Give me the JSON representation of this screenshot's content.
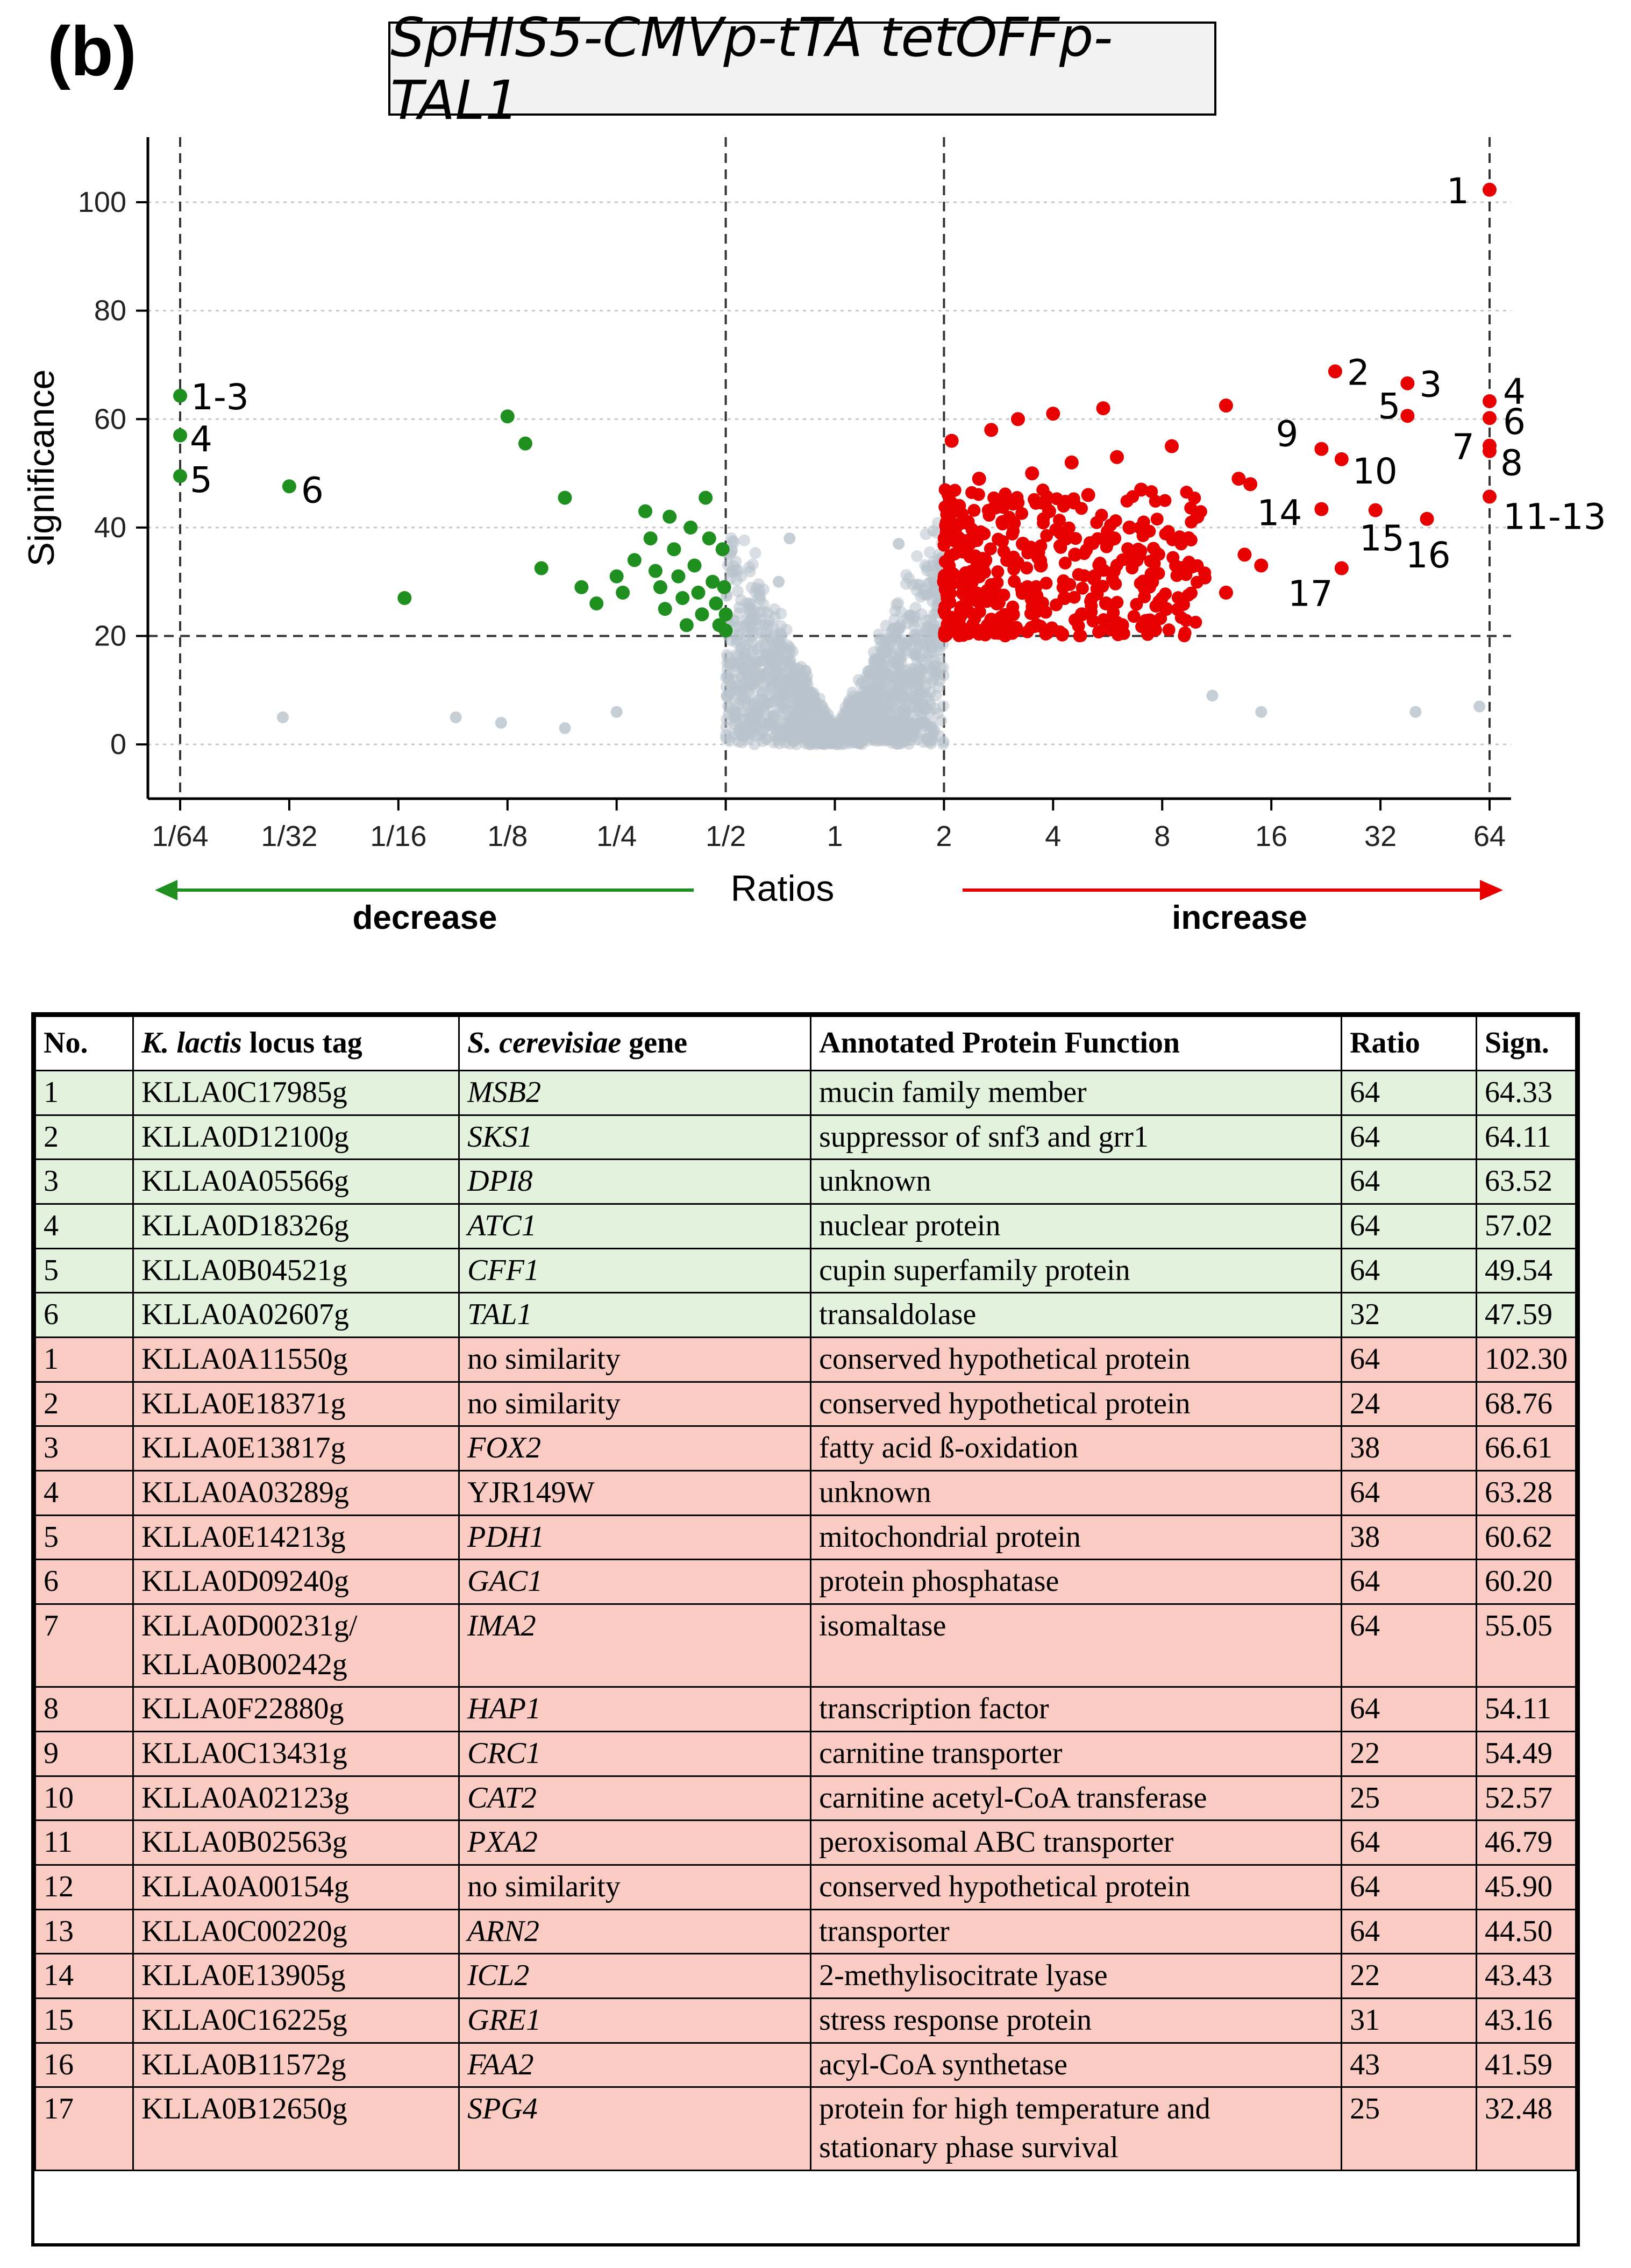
{
  "panel_label": "(b)",
  "title": "SpHIS5-CMVp-tTA tetOFFp-TAL1",
  "chart_data": {
    "type": "scatter",
    "title": "SpHIS5-CMVp-tTA tetOFFp-TAL1",
    "xlabel": "Ratios",
    "ylabel": "Significance",
    "x_scale": "log2",
    "xlim": [
      0.0156,
      64
    ],
    "ylim": [
      -10,
      112
    ],
    "x_ticks": [
      "1/64",
      "1/32",
      "1/16",
      "1/8",
      "1/4",
      "1/2",
      "1",
      "2",
      "4",
      "8",
      "16",
      "32",
      "64"
    ],
    "y_ticks": [
      "0",
      "20",
      "40",
      "60",
      "80",
      "100"
    ],
    "thresholds": {
      "ratio_low": 0.5,
      "ratio_high": 2,
      "ratio_limits": [
        0.015625,
        64
      ],
      "significance": 20
    },
    "decrease_label": "decrease",
    "increase_label": "increase",
    "decreased_annotated": [
      {
        "label": "1-3",
        "x": 0.015625,
        "y": 64.3
      },
      {
        "label": "4",
        "x": 0.015625,
        "y": 57.0
      },
      {
        "label": "5",
        "x": 0.015625,
        "y": 49.5
      },
      {
        "label": "6",
        "x": 0.03125,
        "y": 47.6
      }
    ],
    "increased_annotated": [
      {
        "label": "1",
        "x": 64,
        "y": 102.3
      },
      {
        "label": "2",
        "x": 24,
        "y": 68.8
      },
      {
        "label": "3",
        "x": 38,
        "y": 66.6
      },
      {
        "label": "4",
        "x": 64,
        "y": 63.3
      },
      {
        "label": "5",
        "x": 38,
        "y": 60.6
      },
      {
        "label": "6",
        "x": 64,
        "y": 60.2
      },
      {
        "label": "7",
        "x": 64,
        "y": 55.1
      },
      {
        "label": "8",
        "x": 64,
        "y": 54.1
      },
      {
        "label": "9",
        "x": 22,
        "y": 54.5
      },
      {
        "label": "10",
        "x": 25,
        "y": 52.6
      },
      {
        "label": "11-13",
        "x": 64,
        "y": 45.7
      },
      {
        "label": "14",
        "x": 22,
        "y": 43.4
      },
      {
        "label": "15",
        "x": 31,
        "y": 43.2
      },
      {
        "label": "16",
        "x": 43,
        "y": 41.6
      },
      {
        "label": "17",
        "x": 25,
        "y": 32.5
      }
    ],
    "decreased_other": [
      [
        0.125,
        60.5
      ],
      [
        0.14,
        55.5
      ],
      [
        0.18,
        45.5
      ],
      [
        0.155,
        32.5
      ],
      [
        0.065,
        27
      ],
      [
        0.2,
        29
      ],
      [
        0.22,
        26
      ],
      [
        0.25,
        31
      ],
      [
        0.26,
        28
      ],
      [
        0.28,
        34
      ],
      [
        0.3,
        43
      ],
      [
        0.31,
        38
      ],
      [
        0.32,
        32
      ],
      [
        0.33,
        29
      ],
      [
        0.34,
        25
      ],
      [
        0.35,
        42
      ],
      [
        0.36,
        36
      ],
      [
        0.37,
        31
      ],
      [
        0.38,
        27
      ],
      [
        0.39,
        22
      ],
      [
        0.4,
        40
      ],
      [
        0.41,
        33
      ],
      [
        0.42,
        28
      ],
      [
        0.43,
        24
      ],
      [
        0.44,
        45.5
      ],
      [
        0.45,
        38
      ],
      [
        0.46,
        30
      ],
      [
        0.47,
        26
      ],
      [
        0.48,
        22
      ],
      [
        0.49,
        36
      ],
      [
        0.495,
        29
      ],
      [
        0.5,
        24
      ],
      [
        0.5,
        21
      ]
    ],
    "increased_other": [
      [
        12,
        62.5
      ],
      [
        5.5,
        62
      ],
      [
        3.2,
        60
      ],
      [
        4.0,
        61
      ],
      [
        2.7,
        58
      ],
      [
        2.1,
        56
      ],
      [
        8.5,
        55
      ],
      [
        6,
        53
      ],
      [
        4.5,
        52
      ],
      [
        3.5,
        50
      ],
      [
        2.5,
        49
      ],
      [
        13,
        49
      ],
      [
        14,
        48
      ],
      [
        7,
        47
      ],
      [
        5,
        46
      ],
      [
        3,
        45
      ],
      [
        2.2,
        44
      ],
      [
        10,
        42
      ],
      [
        9,
        38
      ],
      [
        6.5,
        40
      ],
      [
        4.2,
        39
      ],
      [
        3.3,
        37
      ],
      [
        2.3,
        36
      ],
      [
        2.6,
        34
      ],
      [
        3.7,
        33
      ],
      [
        5.2,
        31
      ],
      [
        7.5,
        30
      ],
      [
        8.2,
        25
      ],
      [
        12,
        28
      ],
      [
        15,
        33
      ],
      [
        13.5,
        35
      ],
      [
        2.0,
        30
      ],
      [
        2.4,
        28
      ],
      [
        2.8,
        26
      ],
      [
        3.1,
        24
      ],
      [
        3.6,
        22
      ],
      [
        4.3,
        27
      ],
      [
        4.8,
        24
      ],
      [
        5.6,
        26
      ],
      [
        6.2,
        22
      ],
      [
        2.1,
        22
      ],
      [
        2.9,
        41
      ],
      [
        3.9,
        43
      ],
      [
        4.6,
        35
      ],
      [
        6.8,
        34
      ],
      [
        2.2,
        38
      ],
      [
        2.5,
        31
      ],
      [
        2.7,
        23
      ],
      [
        3.4,
        29
      ],
      [
        5.9,
        38
      ]
    ],
    "other_points_note": ""
  },
  "table": {
    "headers": {
      "no": "No.",
      "tag_italic": "K. lactis",
      "tag_rest": " locus tag",
      "gene_italic": "S. cerevisiae",
      "gene_rest": " gene",
      "func": "Annotated Protein Function",
      "ratio": "Ratio",
      "sign": "Sign."
    },
    "decreased": [
      {
        "no": "1",
        "tag": "KLLA0C17985g",
        "gene": "MSB2",
        "func": "mucin family member",
        "ratio": "64",
        "sign": "64.33"
      },
      {
        "no": "2",
        "tag": "KLLA0D12100g",
        "gene": "SKS1",
        "func": "suppressor of snf3 and grr1",
        "ratio": "64",
        "sign": "64.11"
      },
      {
        "no": "3",
        "tag": "KLLA0A05566g",
        "gene": "DPI8",
        "func": "unknown",
        "ratio": "64",
        "sign": "63.52"
      },
      {
        "no": "4",
        "tag": "KLLA0D18326g",
        "gene": "ATC1",
        "func": "nuclear protein",
        "ratio": "64",
        "sign": "57.02"
      },
      {
        "no": "5",
        "tag": "KLLA0B04521g",
        "gene": "CFF1",
        "func": "cupin superfamily protein",
        "ratio": "64",
        "sign": "49.54"
      },
      {
        "no": "6",
        "tag": "KLLA0A02607g",
        "gene": "TAL1",
        "func": "transaldolase",
        "ratio": "32",
        "sign": "47.59"
      }
    ],
    "increased": [
      {
        "no": "1",
        "tag": "KLLA0A11550g",
        "gene": "no similarity",
        "plain": true,
        "func": "conserved hypothetical protein",
        "ratio": "64",
        "sign": "102.30"
      },
      {
        "no": "2",
        "tag": "KLLA0E18371g",
        "gene": "no similarity",
        "plain": true,
        "func": "conserved hypothetical protein",
        "ratio": "24",
        "sign": "68.76"
      },
      {
        "no": "3",
        "tag": "KLLA0E13817g",
        "gene": "FOX2",
        "func": "fatty acid ß-oxidation",
        "ratio": "38",
        "sign": "66.61"
      },
      {
        "no": "4",
        "tag": "KLLA0A03289g",
        "gene": "YJR149W",
        "plain": true,
        "func": "unknown",
        "ratio": "64",
        "sign": "63.28"
      },
      {
        "no": "5",
        "tag": "KLLA0E14213g",
        "gene": "PDH1",
        "func": "mitochondrial protein",
        "ratio": "38",
        "sign": "60.62"
      },
      {
        "no": "6",
        "tag": "KLLA0D09240g",
        "gene": "GAC1",
        "func": "protein phosphatase",
        "ratio": "64",
        "sign": "60.20"
      },
      {
        "no": "7",
        "tag": "KLLA0D00231g/ KLLA0B00242g",
        "gene": "IMA2",
        "func": "isomaltase",
        "ratio": "64",
        "sign": "55.05"
      },
      {
        "no": "8",
        "tag": "KLLA0F22880g",
        "gene": "HAP1",
        "func": "transcription factor",
        "ratio": "64",
        "sign": "54.11"
      },
      {
        "no": "9",
        "tag": "KLLA0C13431g",
        "gene": "CRC1",
        "func": "carnitine transporter",
        "ratio": "22",
        "sign": "54.49"
      },
      {
        "no": "10",
        "tag": "KLLA0A02123g",
        "gene": "CAT2",
        "func": "carnitine acetyl-CoA transferase",
        "ratio": "25",
        "sign": "52.57"
      },
      {
        "no": "11",
        "tag": "KLLA0B02563g",
        "gene": "PXA2",
        "func": "peroxisomal ABC transporter",
        "ratio": "64",
        "sign": "46.79"
      },
      {
        "no": "12",
        "tag": "KLLA0A00154g",
        "gene": "no similarity",
        "plain": true,
        "func": "conserved hypothetical protein",
        "ratio": "64",
        "sign": "45.90"
      },
      {
        "no": "13",
        "tag": "KLLA0C00220g",
        "gene": "ARN2",
        "func": "transporter",
        "ratio": "64",
        "sign": "44.50"
      },
      {
        "no": "14",
        "tag": "KLLA0E13905g",
        "gene": "ICL2",
        "func": "2-methylisocitrate lyase",
        "ratio": "22",
        "sign": "43.43"
      },
      {
        "no": "15",
        "tag": "KLLA0C16225g",
        "gene": "GRE1",
        "func": "stress response protein",
        "ratio": "31",
        "sign": "43.16"
      },
      {
        "no": "16",
        "tag": "KLLA0B11572g",
        "gene": "FAA2",
        "func": "acyl-CoA synthetase",
        "ratio": "43",
        "sign": "41.59"
      },
      {
        "no": "17",
        "tag": "KLLA0B12650g",
        "gene": "SPG4",
        "func": "protein for high temperature and stationary phase survival",
        "ratio": "25",
        "sign": "32.48"
      }
    ]
  },
  "colors": {
    "decrease": "#1f8f1f",
    "increase": "#e80000",
    "neutral": "#b8c2cc",
    "decrease_row": "#e3f2dc",
    "increase_row": "#f9cbc2"
  }
}
